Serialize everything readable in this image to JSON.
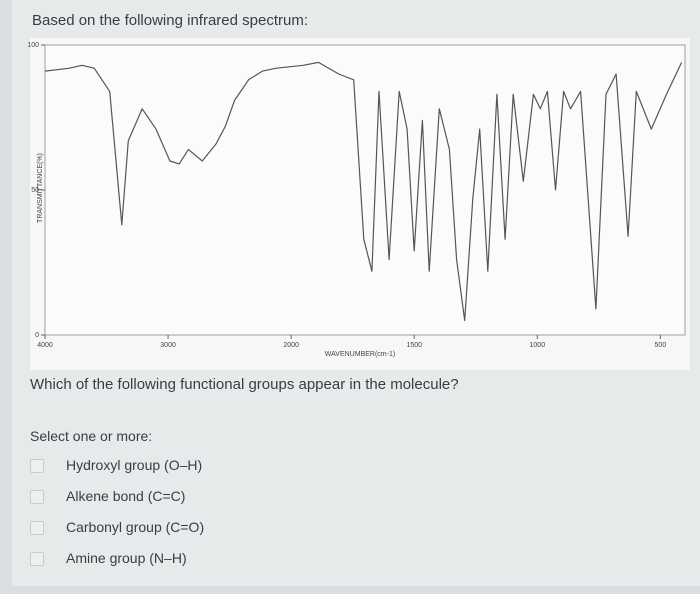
{
  "header": "Based on the following infrared spectrum:",
  "chart_data": {
    "type": "line",
    "ylabel": "TRANSMITTANCE(%)",
    "xlabel": "WAVENUMBER(cm-1)",
    "xlim": [
      4000,
      400
    ],
    "ylim": [
      0,
      100
    ],
    "xticks": [
      4000,
      3000,
      2000,
      1500,
      1000,
      500
    ],
    "yticks": [
      0,
      50,
      100
    ],
    "color": "#555555",
    "x": [
      4000,
      3800,
      3700,
      3600,
      3474,
      3376,
      3323,
      3210,
      3098,
      2985,
      2910,
      2835,
      2722,
      2609,
      2534,
      2459,
      2346,
      2233,
      2120,
      1951,
      1889,
      1807,
      1746,
      1705,
      1672,
      1643,
      1602,
      1561,
      1529,
      1500,
      1467,
      1439,
      1398,
      1357,
      1328,
      1295,
      1262,
      1234,
      1201,
      1164,
      1131,
      1098,
      1057,
      1016,
      988,
      959,
      926,
      893,
      865,
      824,
      762,
      721,
      680,
      631,
      598,
      537,
      475,
      414
    ],
    "values": [
      91,
      92,
      93,
      92,
      84,
      38,
      67,
      78,
      71,
      60,
      59,
      64,
      60,
      66,
      72,
      81,
      88,
      91,
      92,
      93,
      94,
      90,
      88,
      33,
      22,
      84,
      26,
      84,
      71,
      29,
      74,
      22,
      78,
      64,
      26,
      5,
      47,
      71,
      22,
      83,
      33,
      83,
      53,
      83,
      78,
      84,
      50,
      84,
      78,
      84,
      9,
      83,
      90,
      34,
      84,
      71,
      83,
      94
    ]
  },
  "question": "Which of the following functional groups appear in the molecule?",
  "prompt": "Select one or more:",
  "options": [
    "Hydroxyl group (O–H)",
    "Alkene bond (C=C)",
    "Carbonyl group (C=O)",
    "Amine group (N–H)"
  ]
}
